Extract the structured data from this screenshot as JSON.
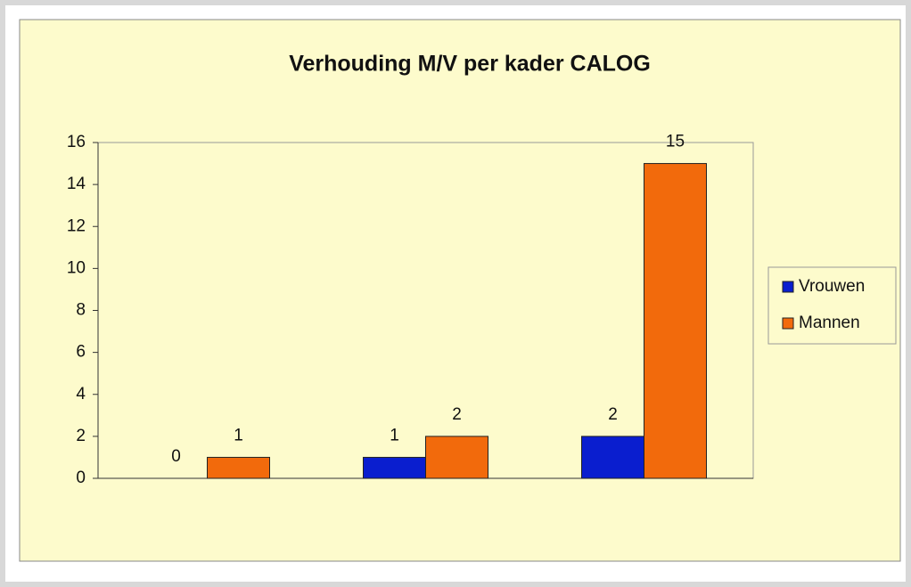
{
  "chart_data": {
    "type": "bar",
    "title": "Verhouding M/V per kader CALOG",
    "categories": [
      null,
      null,
      null
    ],
    "series": [
      {
        "name": "Vrouwen",
        "color": "#0a1ecf",
        "values": [
          0,
          1,
          2
        ]
      },
      {
        "name": "Mannen",
        "color": "#f26a0c",
        "values": [
          1,
          2,
          15
        ]
      }
    ],
    "ylim": [
      0,
      16
    ],
    "yticks": [
      0,
      2,
      4,
      6,
      8,
      10,
      12,
      14,
      16
    ],
    "grid": false,
    "legend": "right"
  }
}
